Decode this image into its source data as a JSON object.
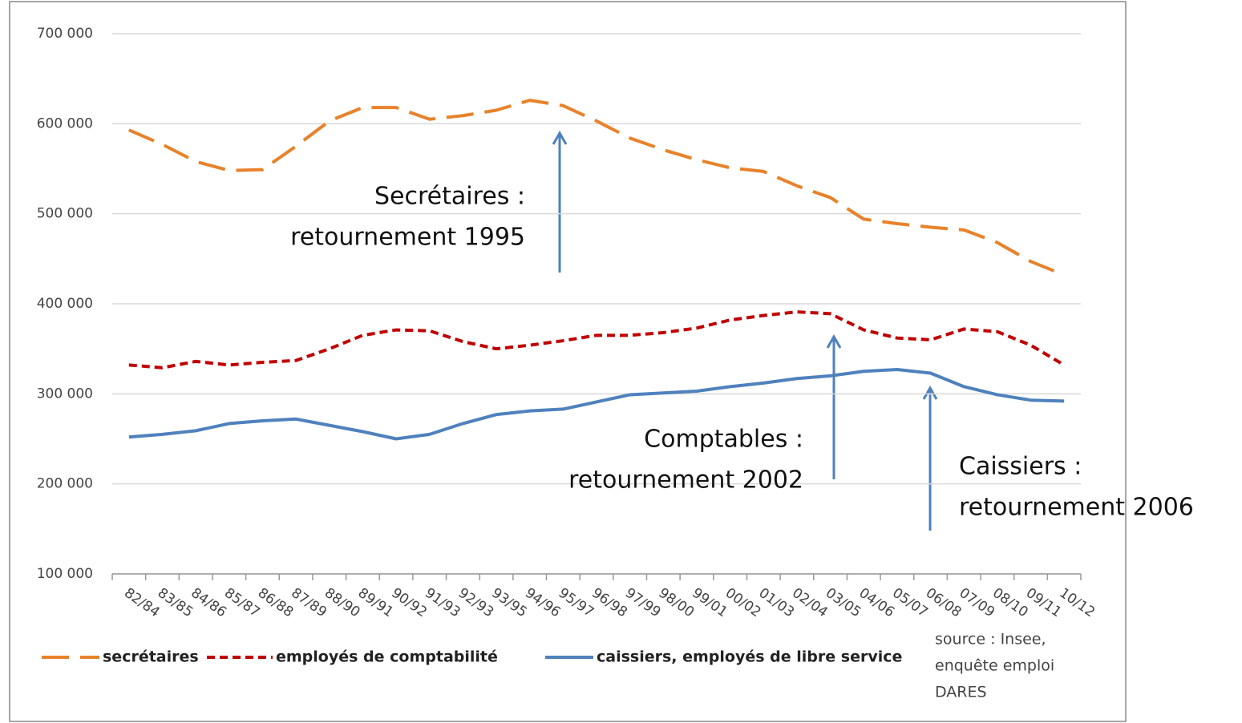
{
  "chart_data": {
    "type": "line",
    "categories": [
      "82/84",
      "83/85",
      "84/86",
      "85/87",
      "86/88",
      "87/89",
      "88/90",
      "89/91",
      "90/92",
      "91/93",
      "92/93",
      "93/95",
      "94/96",
      "95/97",
      "96/98",
      "97/99",
      "98/00",
      "99/01",
      "00/02",
      "01/03",
      "02/04",
      "03/05",
      "04/06",
      "05/07",
      "06/08",
      "07/09",
      "08/10",
      "09/11",
      "10/12"
    ],
    "series": [
      {
        "name": "secrétaires",
        "color": "#e8822a",
        "dash": "long",
        "values": [
          593000,
          577000,
          558000,
          548000,
          549000,
          575000,
          603000,
          618000,
          618000,
          605000,
          609000,
          615000,
          626000,
          620000,
          603000,
          584000,
          571000,
          560000,
          551000,
          547000,
          531000,
          518000,
          494000,
          489000,
          485000,
          482000,
          468000,
          447000,
          432000
        ]
      },
      {
        "name": "employés de comptabilité",
        "color": "#c00000",
        "dash": "short",
        "values": [
          332000,
          329000,
          336000,
          332000,
          335000,
          337000,
          350000,
          365000,
          371000,
          370000,
          358000,
          350000,
          354000,
          359000,
          365000,
          365000,
          368000,
          373000,
          382000,
          387000,
          391000,
          389000,
          371000,
          362000,
          360000,
          372000,
          369000,
          354000,
          332000
        ]
      },
      {
        "name": "caissiers, employés de libre service",
        "color": "#4f81bd",
        "dash": "solid",
        "values": [
          252000,
          255000,
          259000,
          267000,
          270000,
          272000,
          265000,
          258000,
          250000,
          255000,
          267000,
          277000,
          281000,
          283000,
          291000,
          299000,
          301000,
          303000,
          308000,
          312000,
          317000,
          320000,
          325000,
          327000,
          323000,
          308000,
          299000,
          293000,
          292000
        ]
      }
    ],
    "ylim": [
      100000,
      700000
    ],
    "yticks": [
      {
        "value": 100000,
        "label": "100 000"
      },
      {
        "value": 200000,
        "label": "200 000"
      },
      {
        "value": 300000,
        "label": "300 000"
      },
      {
        "value": 400000,
        "label": "400 000"
      },
      {
        "value": 500000,
        "label": "500 000"
      },
      {
        "value": 600000,
        "label": "600 000"
      },
      {
        "value": 700000,
        "label": "700 000"
      }
    ],
    "grid": true,
    "legend": "bottom",
    "annotations": [
      {
        "lines": [
          "Secrétaires :",
          "retournement  1995"
        ]
      },
      {
        "lines": [
          "Comptables :",
          "retournement  2002"
        ]
      },
      {
        "lines": [
          "Caissiers :",
          "retournement  2006"
        ]
      }
    ],
    "source": [
      "source : Insee,",
      "enquête emploi",
      "DARES"
    ]
  }
}
